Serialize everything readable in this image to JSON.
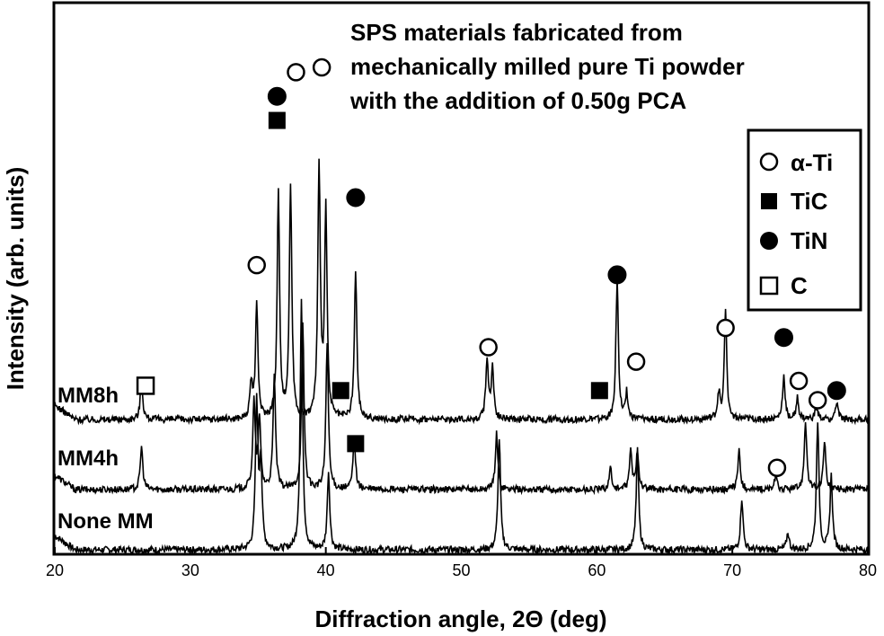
{
  "chart_data": {
    "type": "line",
    "title_lines": [
      "SPS materials fabricated from",
      "mechanically milled pure Ti powder",
      "with the addition of 0.50g PCA"
    ],
    "xlabel": "Diffraction angle, 2Θ (deg)",
    "ylabel": "Intensity (arb. units)",
    "xlim": [
      20,
      80
    ],
    "xticks": [
      20,
      30,
      40,
      50,
      60,
      70,
      80
    ],
    "y_units": "arb. units",
    "grid": false,
    "legend_position": "top-right",
    "legend": [
      {
        "marker": "open-circle",
        "label": "α-Ti"
      },
      {
        "marker": "filled-square",
        "label": "TiC"
      },
      {
        "marker": "filled-circle",
        "label": "TiN"
      },
      {
        "marker": "open-square",
        "label": "C"
      }
    ],
    "series": [
      {
        "name": "None MM",
        "baseline": 0,
        "peaks": [
          [
            34.9,
            34
          ],
          [
            35.2,
            20
          ],
          [
            38.2,
            58
          ],
          [
            40.2,
            18
          ],
          [
            52.8,
            26
          ],
          [
            63.0,
            23
          ],
          [
            70.7,
            12
          ],
          [
            74.1,
            4
          ],
          [
            76.3,
            30
          ],
          [
            77.3,
            17
          ]
        ]
      },
      {
        "name": "MM4h",
        "baseline": 0.8,
        "peaks": [
          [
            26.4,
            10
          ],
          [
            34.7,
            20
          ],
          [
            35.1,
            16
          ],
          [
            36.2,
            26
          ],
          [
            38.3,
            38
          ],
          [
            40.1,
            34
          ],
          [
            42.1,
            12
          ],
          [
            52.6,
            13
          ],
          [
            61.0,
            5
          ],
          [
            62.5,
            9
          ],
          [
            63.0,
            9
          ],
          [
            70.5,
            9
          ],
          [
            73.2,
            3
          ],
          [
            75.4,
            16
          ],
          [
            76.8,
            11
          ]
        ]
      },
      {
        "name": "MM8h",
        "baseline": 1.6,
        "peaks": [
          [
            26.4,
            9
          ],
          [
            34.5,
            8
          ],
          [
            34.9,
            26
          ],
          [
            36.5,
            52
          ],
          [
            37.4,
            54
          ],
          [
            39.5,
            58
          ],
          [
            40.0,
            48
          ],
          [
            42.2,
            34
          ],
          [
            51.9,
            14
          ],
          [
            52.3,
            12
          ],
          [
            61.5,
            32
          ],
          [
            62.2,
            6
          ],
          [
            69.0,
            6
          ],
          [
            69.5,
            25
          ],
          [
            73.8,
            10
          ],
          [
            74.8,
            5
          ],
          [
            76.2,
            3
          ],
          [
            77.7,
            4
          ]
        ]
      }
    ],
    "annotations": [
      {
        "marker": "open-circle",
        "x": 37.8,
        "level": 99
      },
      {
        "marker": "open-circle",
        "x": 39.7,
        "level": 100
      },
      {
        "marker": "filled-circle",
        "x": 36.4,
        "level": 94
      },
      {
        "marker": "filled-square",
        "x": 36.4,
        "level": 89
      },
      {
        "marker": "filled-circle",
        "x": 42.2,
        "level": 73
      },
      {
        "marker": "open-circle",
        "x": 34.9,
        "level": 59
      },
      {
        "marker": "filled-circle",
        "x": 61.5,
        "level": 57
      },
      {
        "marker": "open-circle",
        "x": 52.0,
        "level": 42
      },
      {
        "marker": "open-circle",
        "x": 62.9,
        "level": 39
      },
      {
        "marker": "open-circle",
        "x": 69.5,
        "level": 46
      },
      {
        "marker": "filled-circle",
        "x": 73.8,
        "level": 44
      },
      {
        "marker": "open-circle",
        "x": 74.9,
        "level": 35
      },
      {
        "marker": "open-circle",
        "x": 76.3,
        "level": 31
      },
      {
        "marker": "filled-circle",
        "x": 77.7,
        "level": 33
      },
      {
        "marker": "open-square",
        "x": 26.7,
        "level": 34
      },
      {
        "marker": "filled-square",
        "x": 41.1,
        "level": 33
      },
      {
        "marker": "filled-square",
        "x": 60.2,
        "level": 33
      },
      {
        "marker": "filled-square",
        "x": 42.2,
        "level": 22
      },
      {
        "marker": "open-circle",
        "x": 73.3,
        "level": 17
      }
    ]
  }
}
